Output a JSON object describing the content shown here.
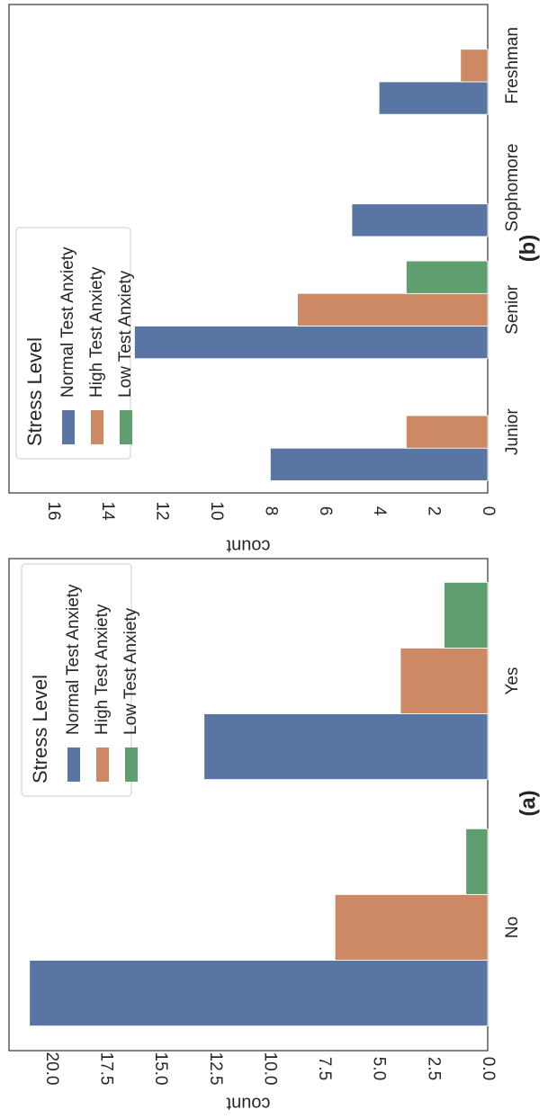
{
  "chart_data": [
    {
      "panel_label": "(a)",
      "type": "bar",
      "categories": [
        "No",
        "Yes"
      ],
      "series": [
        {
          "name": "Normal Test Anxiety",
          "values": [
            21,
            13
          ]
        },
        {
          "name": "High Test Anxiety",
          "values": [
            7,
            4
          ]
        },
        {
          "name": "Low Test Anxiety",
          "values": [
            1,
            2
          ]
        }
      ],
      "xlabel": "",
      "ylabel": "count",
      "ylim": [
        0,
        22
      ],
      "yticks": [
        "0.0",
        "2.5",
        "5.0",
        "7.5",
        "10.0",
        "12.5",
        "15.0",
        "17.5",
        "20.0"
      ],
      "legend": {
        "title": "Stress Level",
        "placement": "upper-right"
      },
      "grid": false,
      "rotation": "90 degrees clockwise"
    },
    {
      "panel_label": "(b)",
      "type": "bar",
      "categories": [
        "Junior",
        "Senior",
        "Sophomore",
        "Freshman"
      ],
      "series": [
        {
          "name": "Normal Test Anxiety",
          "values": [
            8,
            13,
            5,
            4
          ]
        },
        {
          "name": "High Test Anxiety",
          "values": [
            3,
            7,
            0,
            1
          ]
        },
        {
          "name": "Low Test Anxiety",
          "values": [
            0,
            3,
            0,
            0
          ]
        }
      ],
      "xlabel": "",
      "ylabel": "count",
      "ylim": [
        0,
        17.5
      ],
      "yticks": [
        "0",
        "2",
        "4",
        "6",
        "8",
        "10",
        "12",
        "14",
        "16"
      ],
      "legend": {
        "title": "Stress Level",
        "placement": "upper-left"
      },
      "grid": false,
      "rotation": "90 degrees clockwise"
    }
  ],
  "colors": {
    "Normal Test Anxiety": "#5875a4",
    "High Test Anxiety": "#cc8963",
    "Low Test Anxiety": "#5f9e6e"
  }
}
